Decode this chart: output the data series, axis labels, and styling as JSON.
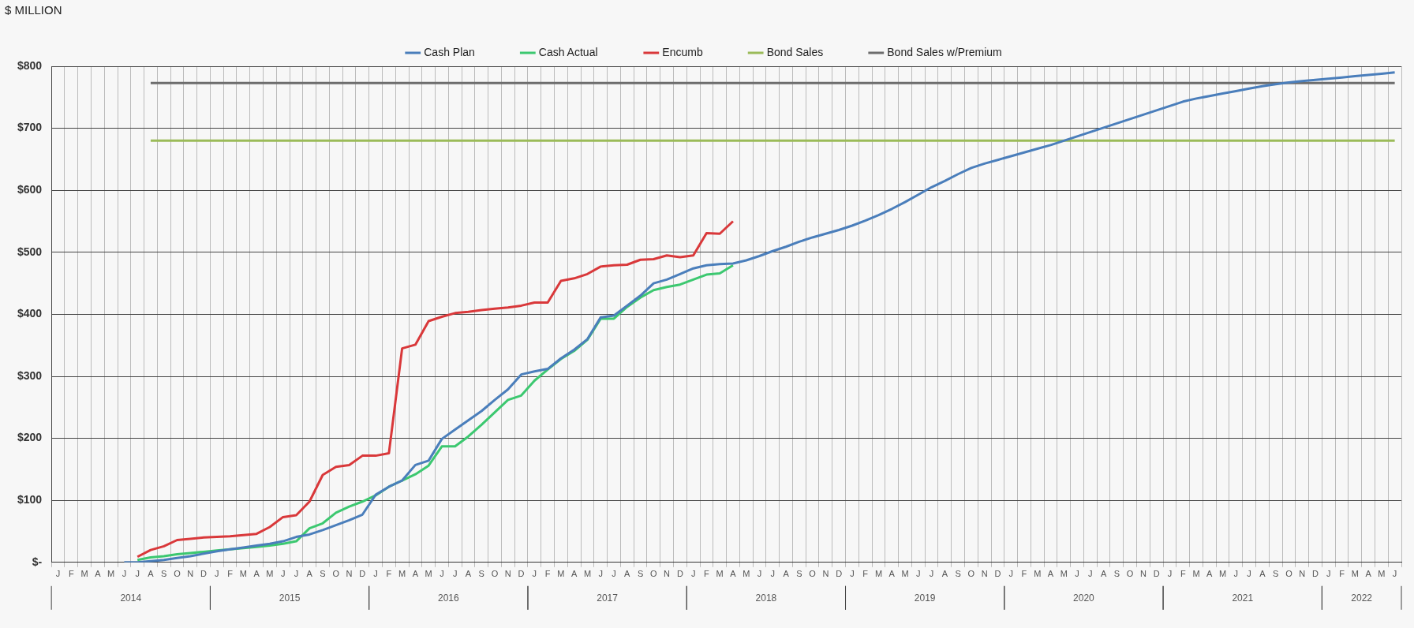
{
  "chart_data": {
    "type": "line",
    "ylabel": "$ MILLION",
    "categories": [
      "J",
      "F",
      "M",
      "A",
      "M",
      "J",
      "J",
      "A",
      "S",
      "O",
      "N",
      "D",
      "J",
      "F",
      "M",
      "A",
      "M",
      "J",
      "J",
      "A",
      "S",
      "O",
      "N",
      "D",
      "J",
      "F",
      "M",
      "A",
      "M",
      "J",
      "J",
      "A",
      "S",
      "O",
      "N",
      "D",
      "J",
      "F",
      "M",
      "A",
      "M",
      "J",
      "J",
      "A",
      "S",
      "O",
      "N",
      "D",
      "J",
      "F",
      "M",
      "A",
      "M",
      "J",
      "J",
      "A",
      "S",
      "O",
      "N",
      "D",
      "J",
      "F",
      "M",
      "A",
      "M",
      "J",
      "J",
      "A",
      "S",
      "O",
      "N",
      "D",
      "J",
      "F",
      "M",
      "A",
      "M",
      "J",
      "J",
      "A",
      "S",
      "O",
      "N",
      "D",
      "J",
      "F",
      "M",
      "A",
      "M",
      "J",
      "J",
      "A",
      "S",
      "O",
      "N",
      "D",
      "J",
      "F",
      "M",
      "A",
      "M",
      "J"
    ],
    "series": [
      {
        "name": "Cash Plan",
        "color": "#4a7ebb",
        "values": [
          null,
          null,
          null,
          null,
          null,
          0,
          0,
          2,
          4,
          7,
          10,
          14,
          18,
          21,
          24,
          27,
          30,
          34,
          41,
          45,
          52,
          60,
          68,
          77,
          109,
          122,
          132,
          157,
          164,
          199,
          214,
          229,
          244,
          262,
          279,
          303,
          308,
          312,
          329,
          343,
          360,
          395,
          398,
          414,
          430,
          450,
          456,
          465,
          474,
          479,
          481,
          482,
          487,
          494,
          502,
          509,
          517,
          524,
          530,
          536,
          543,
          551,
          560,
          570,
          581,
          593,
          605,
          615,
          626,
          636,
          643,
          649,
          655,
          661,
          667,
          673,
          680,
          687,
          694,
          701,
          708,
          715,
          722,
          729,
          736,
          743,
          748,
          752,
          756,
          760,
          764,
          768,
          771,
          774,
          776,
          778,
          780,
          782,
          784,
          786,
          788,
          790
        ]
      },
      {
        "name": "Cash Actual",
        "color": "#3cc870",
        "values": [
          null,
          null,
          null,
          null,
          null,
          null,
          4,
          8,
          10,
          13,
          15,
          17,
          19,
          21,
          23,
          25,
          27,
          30,
          34,
          55,
          63,
          80,
          90,
          98,
          108,
          122,
          132,
          142,
          156,
          187,
          187,
          203,
          222,
          242,
          262,
          269,
          293,
          311,
          328,
          341,
          359,
          393,
          393,
          412,
          427,
          439,
          444,
          448,
          456,
          464,
          466,
          479,
          null,
          null,
          null,
          null,
          null,
          null,
          null,
          null,
          null,
          null,
          null,
          null,
          null,
          null,
          null,
          null,
          null,
          null,
          null,
          null,
          null,
          null,
          null,
          null,
          null,
          null,
          null,
          null,
          null,
          null,
          null,
          null,
          null,
          null,
          null,
          null,
          null,
          null,
          null,
          null,
          null,
          null,
          null,
          null,
          null,
          null,
          null,
          null,
          null,
          null
        ]
      },
      {
        "name": "Encumb",
        "color": "#d9383a",
        "values": [
          null,
          null,
          null,
          null,
          null,
          null,
          9,
          20,
          26,
          36,
          38,
          40,
          41,
          42,
          44,
          46,
          57,
          73,
          76,
          98,
          141,
          154,
          157,
          172,
          172,
          176,
          345,
          351,
          389,
          396,
          402,
          404,
          407,
          409,
          411,
          414,
          419,
          419,
          454,
          458,
          465,
          477,
          479,
          480,
          488,
          489,
          495,
          492,
          495,
          531,
          530,
          550,
          null,
          null,
          null,
          null,
          null,
          null,
          null,
          null,
          null,
          null,
          null,
          null,
          null,
          null,
          null,
          null,
          null,
          null,
          null,
          null,
          null,
          null,
          null,
          null,
          null,
          null,
          null,
          null,
          null,
          null,
          null,
          null,
          null,
          null,
          null,
          null,
          null,
          null,
          null,
          null,
          null,
          null,
          null,
          null,
          null,
          null,
          null,
          null,
          null,
          null
        ]
      },
      {
        "name": "Bond Sales",
        "color": "#9bbb59",
        "values": [
          null,
          null,
          null,
          null,
          null,
          null,
          null,
          680,
          680,
          680,
          680,
          680,
          680,
          680,
          680,
          680,
          680,
          680,
          680,
          680,
          680,
          680,
          680,
          680,
          680,
          680,
          680,
          680,
          680,
          680,
          680,
          680,
          680,
          680,
          680,
          680,
          680,
          680,
          680,
          680,
          680,
          680,
          680,
          680,
          680,
          680,
          680,
          680,
          680,
          680,
          680,
          680,
          680,
          680,
          680,
          680,
          680,
          680,
          680,
          680,
          680,
          680,
          680,
          680,
          680,
          680,
          680,
          680,
          680,
          680,
          680,
          680,
          680,
          680,
          680,
          680,
          680,
          680,
          680,
          680,
          680,
          680,
          680,
          680,
          680,
          680,
          680,
          680,
          680,
          680,
          680,
          680,
          680,
          680,
          680,
          680,
          680,
          680,
          680,
          680,
          680,
          680
        ]
      },
      {
        "name": "Bond Sales w/Premium",
        "color": "#6d6d6d",
        "values": [
          null,
          null,
          null,
          null,
          null,
          null,
          null,
          773,
          773,
          773,
          773,
          773,
          773,
          773,
          773,
          773,
          773,
          773,
          773,
          773,
          773,
          773,
          773,
          773,
          773,
          773,
          773,
          773,
          773,
          773,
          773,
          773,
          773,
          773,
          773,
          773,
          773,
          773,
          773,
          773,
          773,
          773,
          773,
          773,
          773,
          773,
          773,
          773,
          773,
          773,
          773,
          773,
          773,
          773,
          773,
          773,
          773,
          773,
          773,
          773,
          773,
          773,
          773,
          773,
          773,
          773,
          773,
          773,
          773,
          773,
          773,
          773,
          773,
          773,
          773,
          773,
          773,
          773,
          773,
          773,
          773,
          773,
          773,
          773,
          773,
          773,
          773,
          773,
          773,
          773,
          773,
          773,
          773,
          773,
          773,
          773,
          773,
          773,
          773,
          773,
          773,
          773
        ]
      }
    ],
    "ylim": [
      0,
      800
    ],
    "yticks": [
      {
        "value": 0,
        "label": "$-"
      },
      {
        "value": 100,
        "label": "$100"
      },
      {
        "value": 200,
        "label": "$200"
      },
      {
        "value": 300,
        "label": "$300"
      },
      {
        "value": 400,
        "label": "$400"
      },
      {
        "value": 500,
        "label": "$500"
      },
      {
        "value": 600,
        "label": "$600"
      },
      {
        "value": 700,
        "label": "$700"
      },
      {
        "value": 800,
        "label": "$800"
      }
    ],
    "annotations": [
      "2014",
      "2015",
      "2016",
      "2017",
      "2018",
      "2019",
      "2020",
      "2021",
      "2022"
    ],
    "grid": true,
    "legend": "top",
    "marker": "none",
    "line_style": "solid"
  }
}
